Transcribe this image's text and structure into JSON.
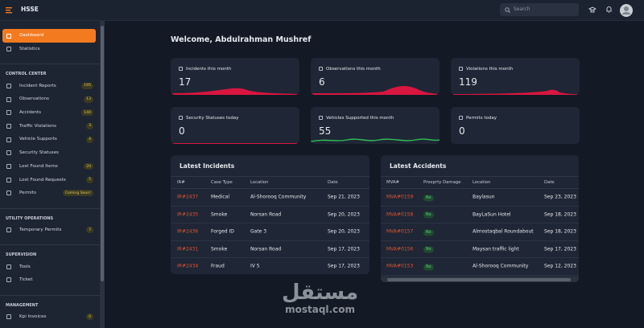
{
  "header": {
    "brand": "HSSE",
    "search_placeholder": "Search"
  },
  "sidebar": {
    "items": [
      {
        "label": "Dashboard"
      },
      {
        "label": "Statistics"
      }
    ],
    "sections": [
      {
        "title": "CONTROL CENTER",
        "items": [
          {
            "label": "Incident Reports",
            "badge": 195
          },
          {
            "label": "Observations",
            "badge": 13
          },
          {
            "label": "Accidents",
            "badge": 140
          },
          {
            "label": "Traffic Violations",
            "badge": 3
          },
          {
            "label": "Vehicle Supports",
            "badge": 4
          },
          {
            "label": "Security Statuses"
          },
          {
            "label": "Lost Found Items",
            "badge": 20
          },
          {
            "label": "Lost Found Requests",
            "badge": 5
          },
          {
            "label": "Permits",
            "badge": "Coming Soon!"
          }
        ]
      },
      {
        "title": "UTILITY OPERATIONS",
        "items": [
          {
            "label": "Temporary Permits",
            "badge": 7
          }
        ]
      },
      {
        "title": "SUPERVISION",
        "items": [
          {
            "label": "Tools"
          },
          {
            "label": "Ticket"
          }
        ]
      },
      {
        "title": "MANAGEMENT",
        "items": [
          {
            "label": "Kpi Invoices",
            "badge": 0
          }
        ]
      }
    ]
  },
  "main": {
    "welcome": "Welcome, Abdulrahman Mushref",
    "cards": [
      {
        "label": "Incidents this month",
        "value": 17
      },
      {
        "label": "Observations this month",
        "value": 6
      },
      {
        "label": "Violations this month",
        "value": 119
      },
      {
        "label": "Security Statuses today",
        "value": 0
      },
      {
        "label": "Vehicles Supported this month",
        "value": 55
      },
      {
        "label": "Permits today",
        "value": 0
      }
    ],
    "tables": [
      {
        "title": "Latest Incidents",
        "columns": [
          "IR#",
          "Case Type",
          "Location",
          "Date"
        ],
        "rows": [
          [
            "IR#2437",
            "Medical",
            "Al-Shorooq Community",
            "Sep 21, 2023"
          ],
          [
            "IR#2435",
            "Smoke",
            "Norsan Road",
            "Sep 20, 2023"
          ],
          [
            "IR#2436",
            "Forged ID",
            "Gate 3",
            "Sep 20, 2023"
          ],
          [
            "IR#2431",
            "Smoke",
            "Norsan Road",
            "Sep 17, 2023"
          ],
          [
            "IR#2434",
            "Fraud",
            "IV 5",
            "Sep 17, 2023"
          ]
        ]
      },
      {
        "title": "Latest Accidents",
        "columns": [
          "MVA#",
          "Proeprty Damage",
          "Location",
          "Date"
        ],
        "rows": [
          [
            "MVA#0159",
            "No",
            "Baylasun",
            "Sep 23, 2023"
          ],
          [
            "MVA#0158",
            "No",
            "BayLaSun Hotel",
            "Sep 18, 2023"
          ],
          [
            "MVA#0157",
            "No",
            "Almostaqbal Roundabout",
            "Sep 18, 2023"
          ],
          [
            "MVA#0156",
            "No",
            "Maysan traffic light",
            "Sep 17, 2023"
          ],
          [
            "MVA#0153",
            "No",
            "Al-Shorooq Community",
            "Sep 12, 2023"
          ]
        ]
      }
    ]
  },
  "watermark": {
    "arabic": "مستقل",
    "latin": "mostaql.com"
  }
}
